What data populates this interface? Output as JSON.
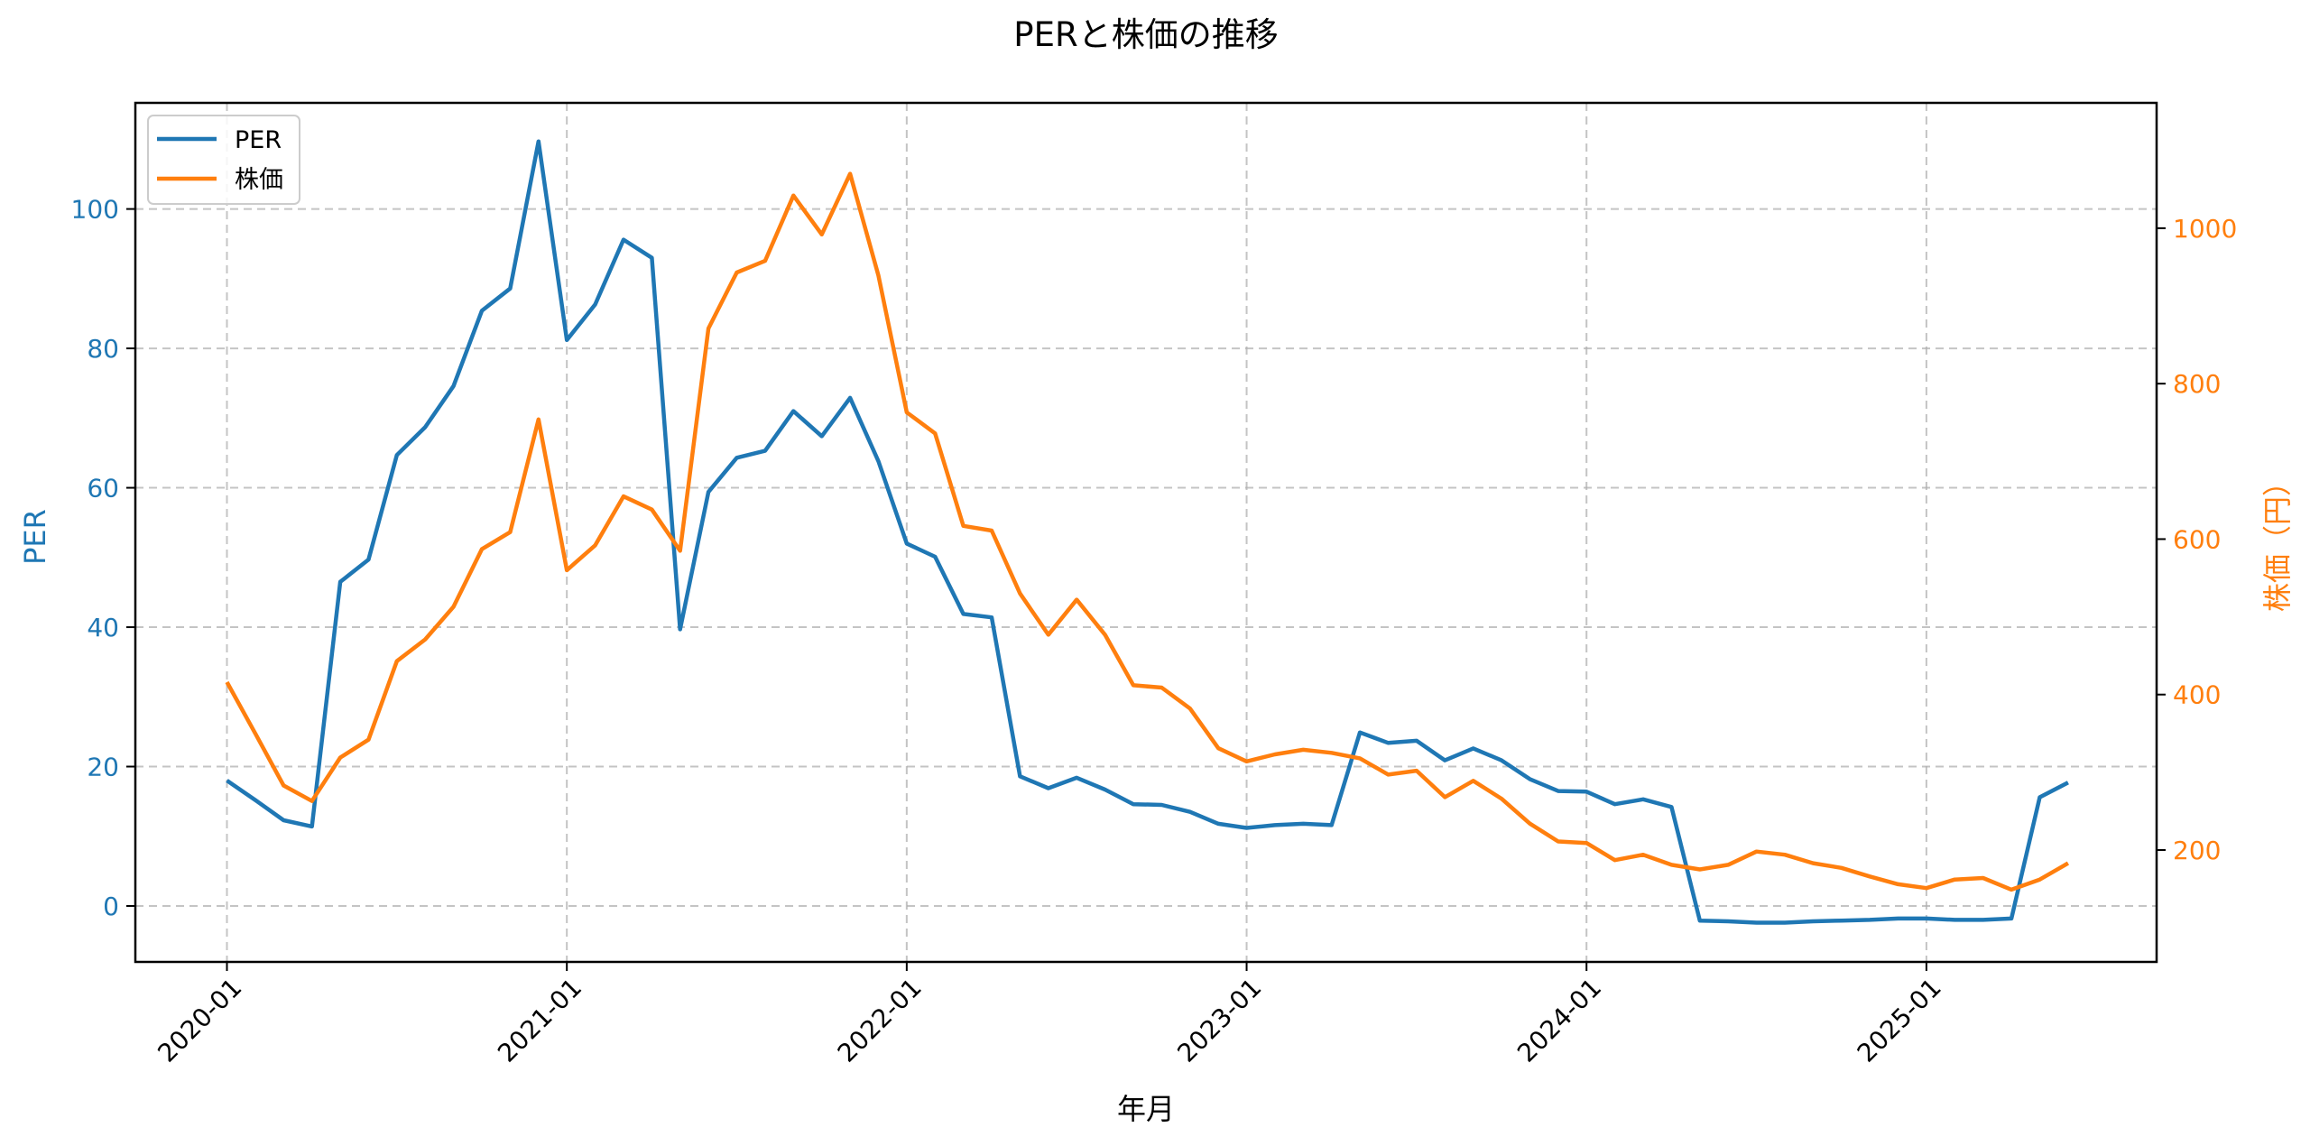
{
  "chart_data": {
    "type": "line",
    "title": "PERと株価の推移",
    "xlabel": "年月",
    "ylabel_left": "PER",
    "ylabel_right": "株価（円）",
    "x_tick_labels": [
      "2020-01",
      "2021-01",
      "2022-01",
      "2023-01",
      "2024-01",
      "2025-01"
    ],
    "y_left_ticks": [
      0,
      20,
      40,
      60,
      80,
      100
    ],
    "y_right_ticks": [
      200,
      400,
      600,
      800,
      1000
    ],
    "ylim_left": [
      -8,
      115
    ],
    "ylim_right": [
      50,
      1155
    ],
    "grid": true,
    "legend_position": "upper left",
    "x": [
      "2020-01",
      "2020-02",
      "2020-03",
      "2020-04",
      "2020-05",
      "2020-06",
      "2020-07",
      "2020-08",
      "2020-09",
      "2020-10",
      "2020-11",
      "2020-12",
      "2021-01",
      "2021-02",
      "2021-03",
      "2021-04",
      "2021-05",
      "2021-06",
      "2021-07",
      "2021-08",
      "2021-09",
      "2021-10",
      "2021-11",
      "2021-12",
      "2022-01",
      "2022-02",
      "2022-03",
      "2022-04",
      "2022-05",
      "2022-06",
      "2022-07",
      "2022-08",
      "2022-09",
      "2022-10",
      "2022-11",
      "2022-12",
      "2023-01",
      "2023-02",
      "2023-03",
      "2023-04",
      "2023-05",
      "2023-06",
      "2023-07",
      "2023-08",
      "2023-09",
      "2023-10",
      "2023-11",
      "2023-12",
      "2024-01",
      "2024-02",
      "2024-03",
      "2024-04",
      "2024-05",
      "2024-06",
      "2024-07",
      "2024-08",
      "2024-09",
      "2024-10",
      "2024-11",
      "2024-12",
      "2025-01",
      "2025-02",
      "2025-03",
      "2025-04",
      "2025-05",
      "2025-06"
    ],
    "series": [
      {
        "name": "PER",
        "axis": "left",
        "color": "#1f77b4",
        "values": [
          18.0,
          15.2,
          12.3,
          11.4,
          46.5,
          49.7,
          64.7,
          68.7,
          74.6,
          85.4,
          88.6,
          109.7,
          81.2,
          86.3,
          95.6,
          93.0,
          39.7,
          59.4,
          64.3,
          65.3,
          71.0,
          67.4,
          72.9,
          63.8,
          52.0,
          50.1,
          41.9,
          41.4,
          18.6,
          16.9,
          18.4,
          16.7,
          14.6,
          14.5,
          13.5,
          11.8,
          11.2,
          11.6,
          11.8,
          11.6,
          24.9,
          23.4,
          23.7,
          20.9,
          22.6,
          20.9,
          18.2,
          16.5,
          16.4,
          14.6,
          15.3,
          14.2,
          -2.1,
          -2.2,
          -2.4,
          -2.4,
          -2.2,
          -2.1,
          -2.0,
          -1.8,
          -1.8,
          -2.0,
          -2.0,
          -1.8,
          15.6,
          17.7
        ]
      },
      {
        "name": "株価",
        "axis": "right",
        "color": "#ff7f0e",
        "values": [
          416,
          350,
          283,
          263,
          319,
          342,
          443,
          471,
          513,
          587,
          609,
          754,
          560,
          592,
          655,
          638,
          585,
          871,
          943,
          958,
          1042,
          992,
          1070,
          939,
          763,
          736,
          617,
          611,
          530,
          477,
          522,
          477,
          412,
          409,
          382,
          331,
          314,
          323,
          329,
          325,
          318,
          297,
          302,
          268,
          289,
          266,
          234,
          211,
          209,
          187,
          194,
          181,
          175,
          181,
          198,
          194,
          183,
          177,
          166,
          156,
          151,
          162,
          164,
          149,
          162,
          183
        ]
      }
    ]
  },
  "colors": {
    "per": "#1f77b4",
    "price": "#ff7f0e",
    "grid": "#b0b0b0"
  }
}
